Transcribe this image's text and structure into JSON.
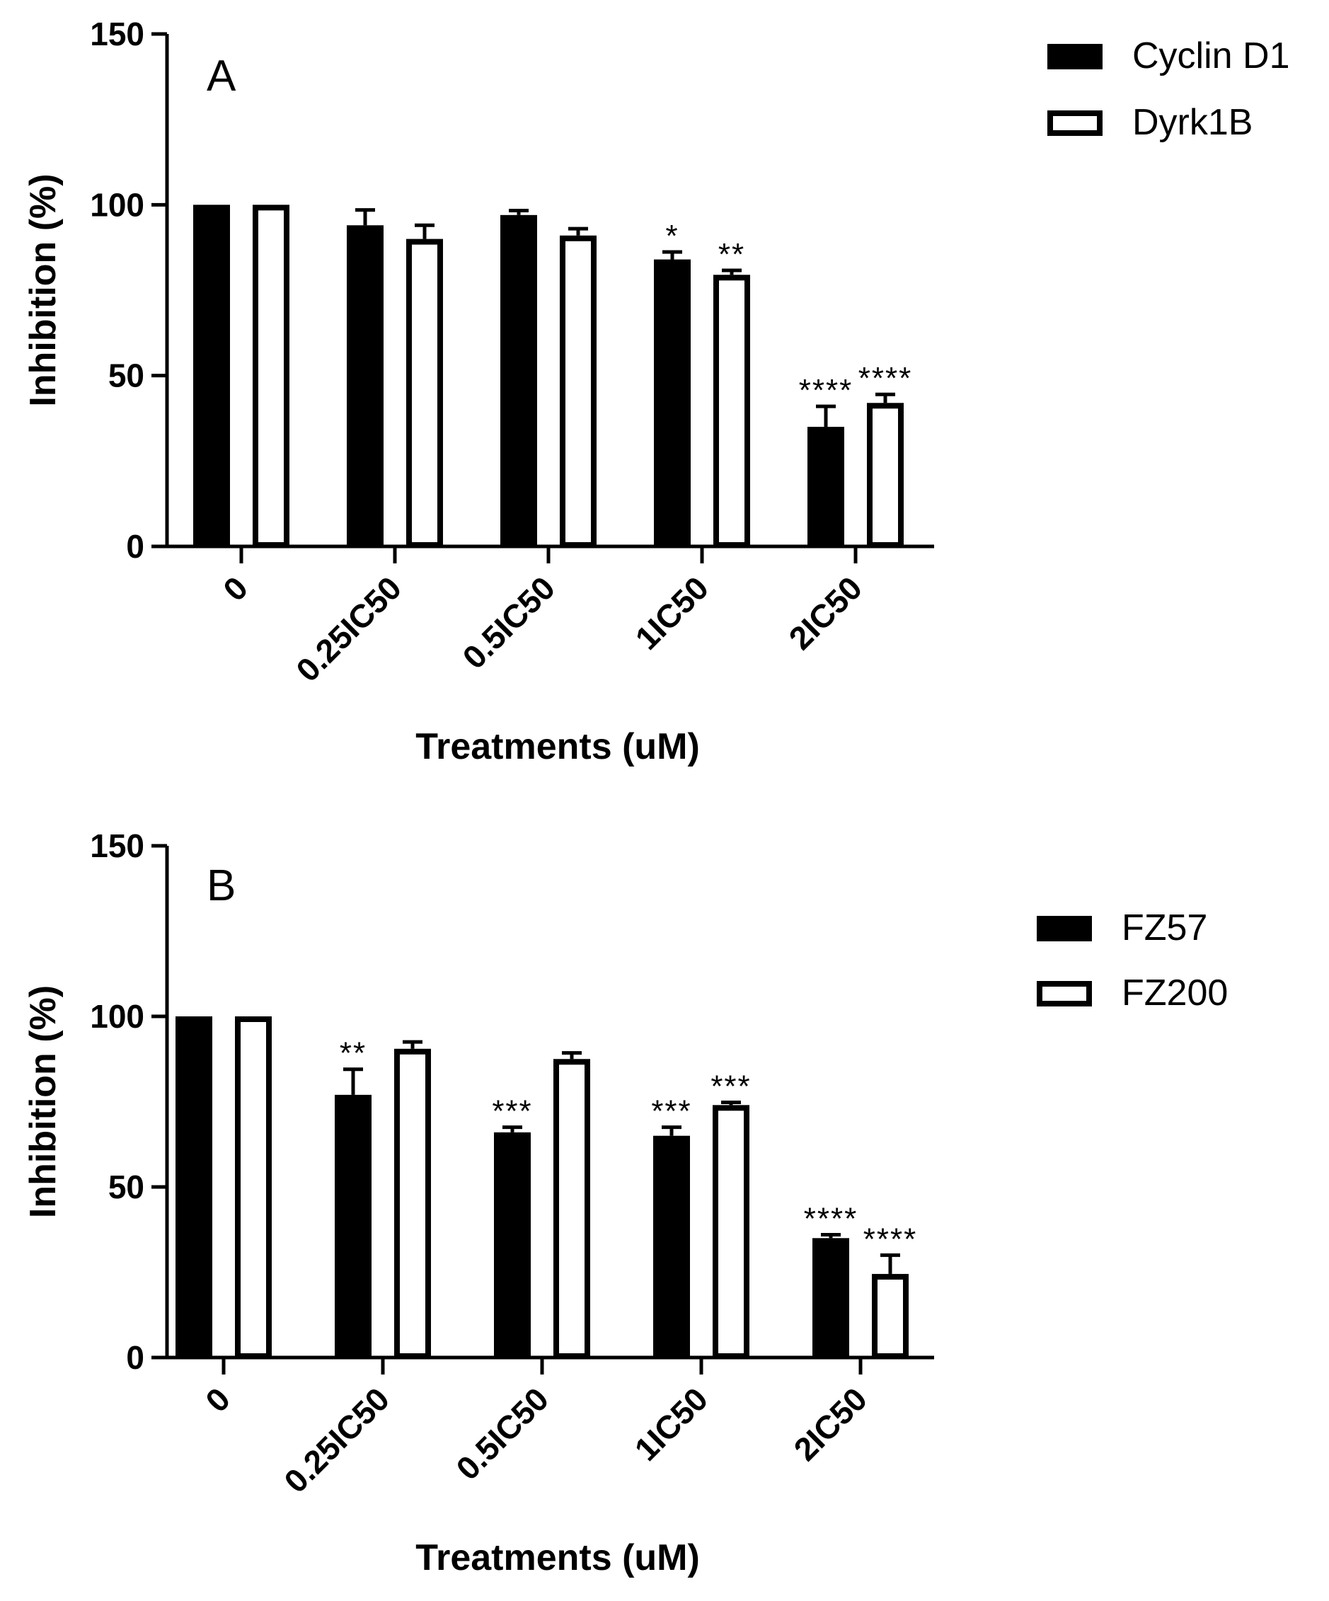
{
  "chart_data": [
    {
      "type": "bar",
      "panel_label": "A",
      "categories": [
        "0",
        "0.25IC50",
        "0.5IC50",
        "1IC50",
        "2IC50"
      ],
      "xlabel": "Treatments (uM)",
      "ylabel": "Inhibition (%)",
      "ylim": [
        0,
        150
      ],
      "yticks": [
        "0",
        "50",
        "100",
        "150"
      ],
      "legend_position": "top-right",
      "series": [
        {
          "name": "Cyclin D1",
          "fill": "#000000",
          "values": [
            100,
            94,
            97,
            84,
            35
          ],
          "errors": [
            0,
            4.5,
            1.3,
            2.2,
            6
          ],
          "significance": [
            "",
            "",
            "",
            "*",
            "****"
          ]
        },
        {
          "name": "Dyrk1B",
          "fill": "#ffffff",
          "values": [
            100,
            90,
            91,
            79.5,
            42
          ],
          "errors": [
            0,
            4,
            2,
            1.3,
            2.5
          ],
          "significance": [
            "",
            "",
            "",
            "**",
            "****"
          ]
        }
      ]
    },
    {
      "type": "bar",
      "panel_label": "B",
      "categories": [
        "0",
        "0.25IC50",
        "0.5IC50",
        "1IC50",
        "2IC50"
      ],
      "xlabel": "Treatments (uM)",
      "ylabel": "Inhibition (%)",
      "ylim": [
        0,
        150
      ],
      "yticks": [
        "0",
        "50",
        "100",
        "150"
      ],
      "legend_position": "right",
      "series": [
        {
          "name": "FZ57",
          "fill": "#000000",
          "values": [
            100,
            77,
            66,
            65,
            35
          ],
          "errors": [
            0,
            7.5,
            1.5,
            2.5,
            1
          ],
          "significance": [
            "",
            "**",
            "***",
            "***",
            "****"
          ]
        },
        {
          "name": "FZ200",
          "fill": "#ffffff",
          "values": [
            100,
            90.5,
            87.5,
            74,
            24.5
          ],
          "errors": [
            0,
            2,
            1.8,
            0.8,
            5.5
          ],
          "significance": [
            "",
            "",
            "",
            "***",
            "****"
          ]
        }
      ]
    }
  ]
}
